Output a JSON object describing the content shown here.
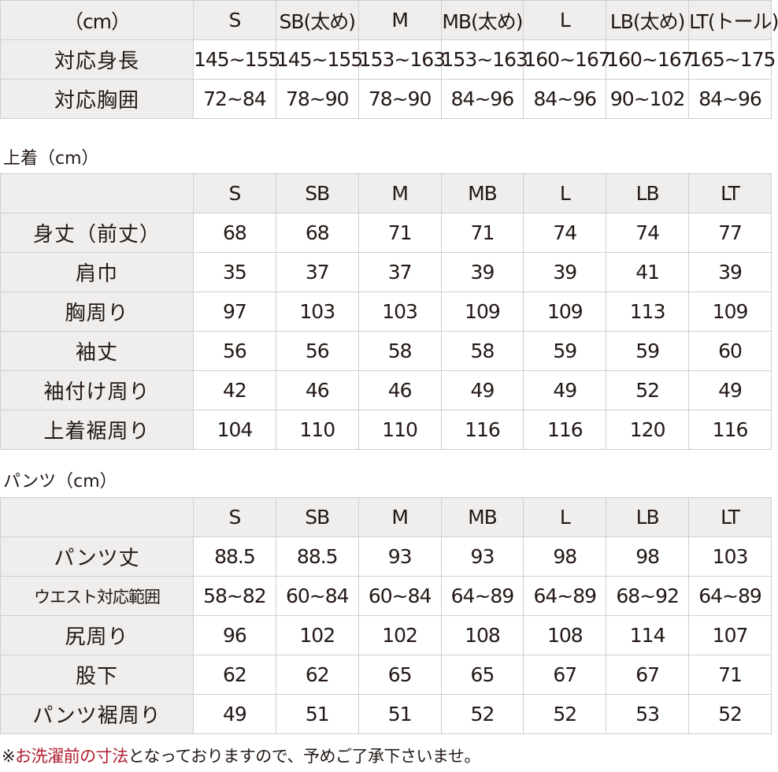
{
  "colors": {
    "header_bg": "#efeeec",
    "border": "#d0cfcd",
    "note_highlight": "#b01e2f"
  },
  "size_table": {
    "header": [
      "（cm）",
      "S",
      "SB(太め)",
      "M",
      "MB(太め)",
      "L",
      "LB(太め)",
      "LT(トール)"
    ],
    "rows": [
      [
        "対応身長",
        "145~155",
        "145~155",
        "153~163",
        "153~163",
        "160~167",
        "160~167",
        "165~175"
      ],
      [
        "対応胸囲",
        "72~84",
        "78~90",
        "78~90",
        "84~96",
        "84~96",
        "90~102",
        "84~96"
      ]
    ]
  },
  "jacket": {
    "title": "上着（cm）",
    "header": [
      "",
      "S",
      "SB",
      "M",
      "MB",
      "L",
      "LB",
      "LT"
    ],
    "rows": [
      [
        "身丈（前丈）",
        "68",
        "68",
        "71",
        "71",
        "74",
        "74",
        "77"
      ],
      [
        "肩巾",
        "35",
        "37",
        "37",
        "39",
        "39",
        "41",
        "39"
      ],
      [
        "胸周り",
        "97",
        "103",
        "103",
        "109",
        "109",
        "113",
        "109"
      ],
      [
        "袖丈",
        "56",
        "56",
        "58",
        "58",
        "59",
        "59",
        "60"
      ],
      [
        "袖付け周り",
        "42",
        "46",
        "46",
        "49",
        "49",
        "52",
        "49"
      ],
      [
        "上着裾周り",
        "104",
        "110",
        "110",
        "116",
        "116",
        "120",
        "116"
      ]
    ]
  },
  "pants": {
    "title": "パンツ（cm）",
    "header": [
      "",
      "S",
      "SB",
      "M",
      "MB",
      "L",
      "LB",
      "LT"
    ],
    "rows": [
      [
        "パンツ丈",
        "88.5",
        "88.5",
        "93",
        "93",
        "98",
        "98",
        "103"
      ],
      [
        "ウエスト対応範囲",
        "58~82",
        "60~84",
        "60~84",
        "64~89",
        "64~89",
        "68~92",
        "64~89"
      ],
      [
        "尻周り",
        "96",
        "102",
        "102",
        "108",
        "108",
        "114",
        "107"
      ],
      [
        "股下",
        "62",
        "62",
        "65",
        "65",
        "67",
        "67",
        "71"
      ],
      [
        "パンツ裾周り",
        "49",
        "51",
        "51",
        "52",
        "52",
        "53",
        "52"
      ]
    ]
  },
  "note": {
    "prefix": "※",
    "highlight": "お洗濯前の寸法",
    "rest": "となっておりますので、予めご了承下さいませ。"
  }
}
